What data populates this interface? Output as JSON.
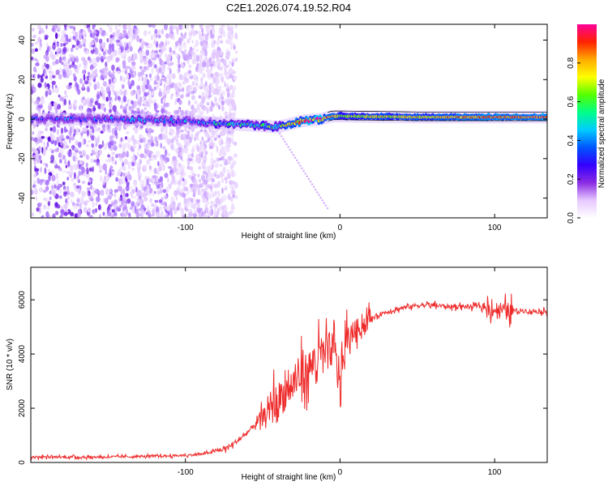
{
  "figure_title": "C2E1.2026.074.19.52.R04",
  "colors": {
    "snr_line": "#ee2a2a",
    "axes": "#000000",
    "background": "#ffffff"
  },
  "chart_data": [
    {
      "type": "heatmap",
      "name": "spectrogram",
      "xlabel": "Height of straight line (km)",
      "ylabel": "Frequency (Hz)",
      "xlim": [
        -200,
        134
      ],
      "ylim": [
        -50,
        48
      ],
      "xticks": [
        -100,
        0,
        100
      ],
      "yticks": [
        -40,
        -20,
        0,
        20,
        40
      ],
      "colorbar": {
        "label": "Normalized spectral amplitude",
        "range": [
          0,
          1
        ],
        "ticks": [
          "0.0",
          "0.2",
          "0.4",
          "0.6",
          "0.8"
        ],
        "colormap": [
          "#ffffff",
          "#e6c8ff",
          "#8a2be2",
          "#3300ff",
          "#0055ff",
          "#00ccff",
          "#00ff88",
          "#55ff00",
          "#ffff00",
          "#ffaa00",
          "#ff2200",
          "#ff0099"
        ]
      },
      "ridge": [
        {
          "x": -200,
          "freq": 0,
          "amp": 0.25
        },
        {
          "x": -150,
          "freq": 0,
          "amp": 0.3
        },
        {
          "x": -100,
          "freq": -1,
          "amp": 0.35
        },
        {
          "x": -60,
          "freq": -3,
          "amp": 0.5
        },
        {
          "x": -40,
          "freq": -4,
          "amp": 0.55
        },
        {
          "x": -25,
          "freq": -1,
          "amp": 0.85
        },
        {
          "x": -12,
          "freq": 0,
          "amp": 0.9
        },
        {
          "x": -5,
          "freq": 1.5,
          "amp": 0.8
        },
        {
          "x": 0,
          "freq": 1.5,
          "amp": 0.7
        },
        {
          "x": 50,
          "freq": 1,
          "amp": 0.75
        },
        {
          "x": 90,
          "freq": 1,
          "amp": 0.85
        },
        {
          "x": 134,
          "freq": 1,
          "amp": 0.9
        }
      ],
      "noise_region": {
        "x_from": -200,
        "x_to": -75,
        "freq_from": -50,
        "freq_to": 48
      }
    },
    {
      "type": "line",
      "name": "snr",
      "xlabel": "Height of straight line (km)",
      "ylabel": "SNR (10 * v/v)",
      "xlim": [
        -200,
        134
      ],
      "ylim": [
        0,
        7200
      ],
      "xticks": [
        -100,
        0,
        100
      ],
      "yticks": [
        0,
        2000,
        4000,
        6000
      ],
      "series": [
        {
          "name": "SNR",
          "x": [
            -200,
            -180,
            -160,
            -140,
            -120,
            -100,
            -90,
            -80,
            -75,
            -70,
            -65,
            -60,
            -55,
            -50,
            -45,
            -40,
            -35,
            -30,
            -25,
            -20,
            -15,
            -10,
            -5,
            0,
            5,
            10,
            15,
            20,
            25,
            30,
            40,
            50,
            60,
            70,
            80,
            90,
            100,
            110,
            120,
            134
          ],
          "y": [
            200,
            200,
            200,
            210,
            230,
            260,
            300,
            420,
            500,
            650,
            850,
            1100,
            1400,
            1700,
            2000,
            2300,
            2600,
            2900,
            3200,
            3500,
            3800,
            4000,
            4200,
            3200,
            4600,
            4900,
            5100,
            5300,
            5450,
            5550,
            5700,
            5800,
            5800,
            5750,
            5750,
            5750,
            5650,
            5600,
            5600,
            5550
          ]
        }
      ]
    }
  ]
}
